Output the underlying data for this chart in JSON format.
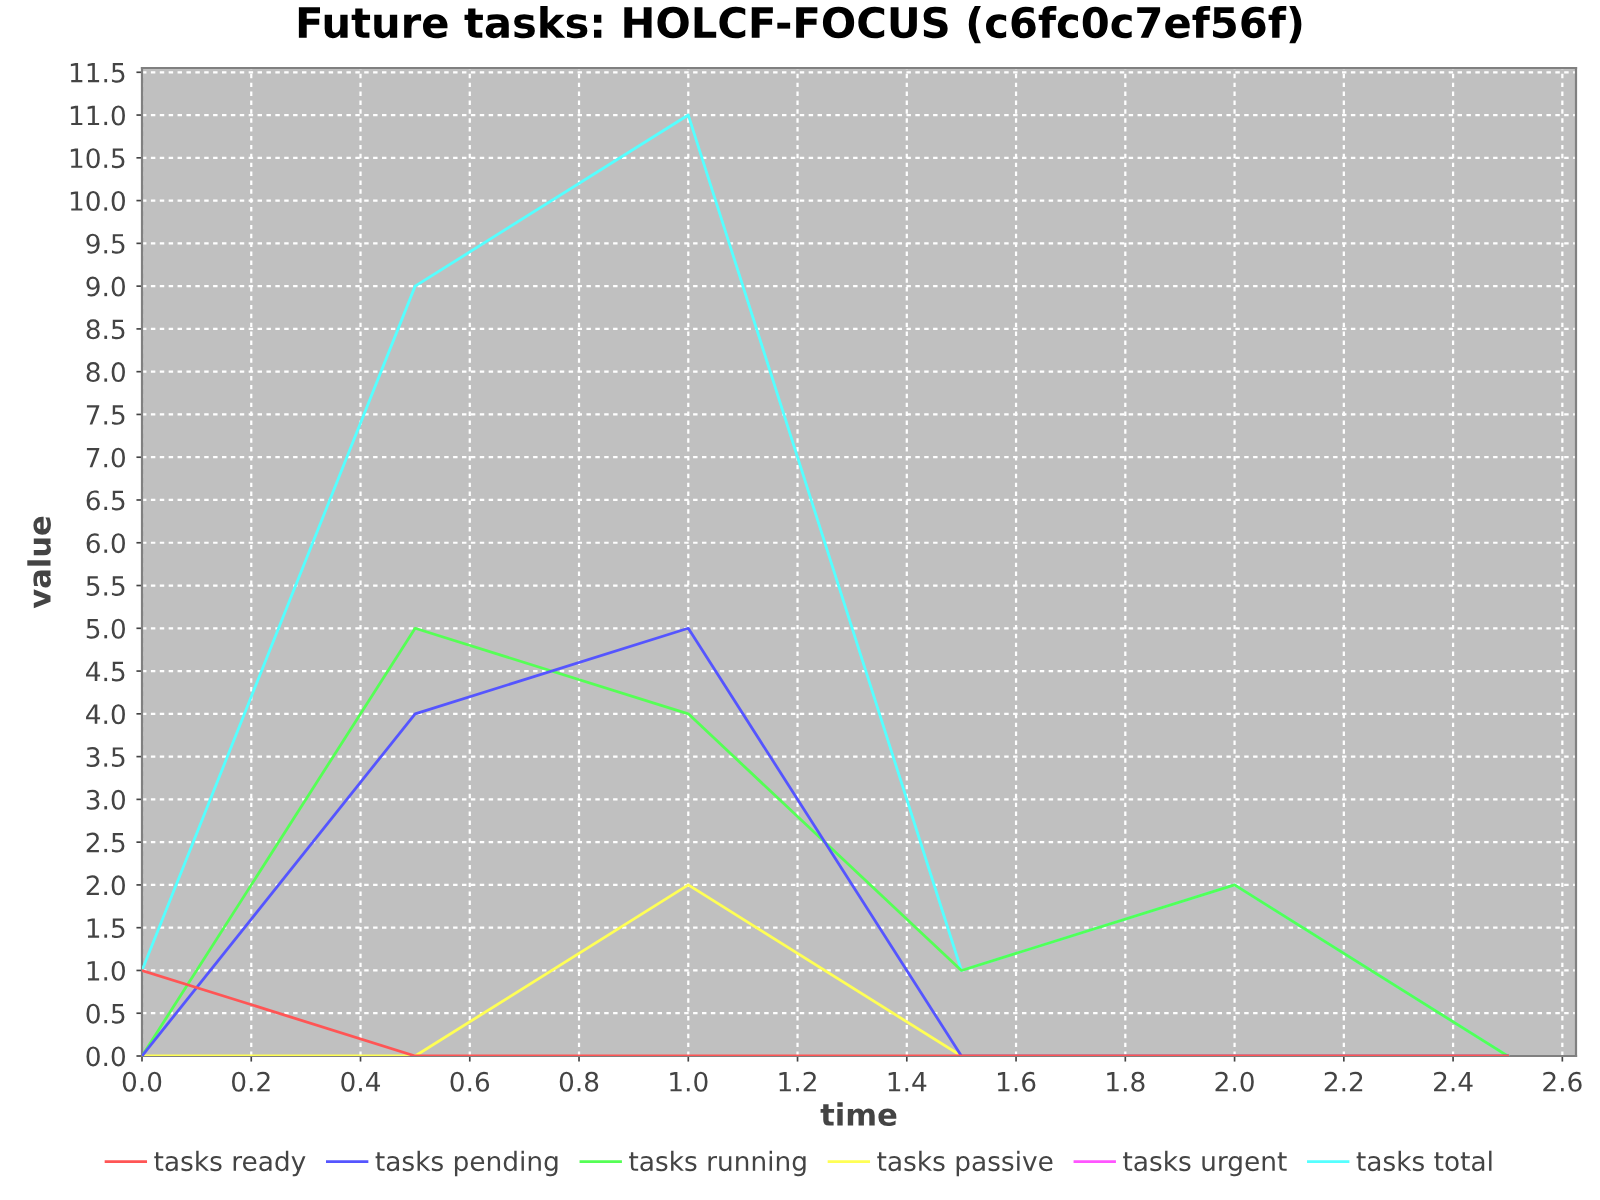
{
  "chart_data": {
    "type": "line",
    "title": "Future tasks: HOLCF-FOCUS (c6fc0c7ef56f)",
    "xlabel": "time",
    "ylabel": "value",
    "x": [
      0.0,
      0.5,
      1.0,
      1.5,
      2.0,
      2.5
    ],
    "series": [
      {
        "name": "tasks ready",
        "color": "#ff5555",
        "values": [
          1,
          0,
          0,
          0,
          0,
          0
        ]
      },
      {
        "name": "tasks pending",
        "color": "#5555ff",
        "values": [
          0,
          4,
          5,
          0,
          0,
          0
        ]
      },
      {
        "name": "tasks running",
        "color": "#55ff55",
        "values": [
          0,
          5,
          4,
          1,
          2,
          0
        ]
      },
      {
        "name": "tasks passive",
        "color": "#ffff55",
        "values": [
          0,
          0,
          2,
          0,
          0,
          0
        ]
      },
      {
        "name": "tasks urgent",
        "color": "#ff55ff",
        "values": [
          null,
          null,
          null,
          null,
          null,
          null
        ]
      },
      {
        "name": "tasks total",
        "color": "#55ffff",
        "values": [
          1,
          9,
          11,
          1,
          2,
          0
        ]
      }
    ],
    "xlim": [
      0,
      2.625
    ],
    "xticks": [
      {
        "value": 0,
        "label": "0.0"
      },
      0.2,
      0.4,
      0.6,
      0.8,
      {
        "value": 1,
        "label": "1.0"
      },
      1.2,
      1.4,
      1.6,
      1.8,
      {
        "value": 2,
        "label": "2.0"
      },
      2.2,
      2.4,
      2.6
    ],
    "ylim": [
      0,
      11.55
    ],
    "yticks": [
      {
        "value": 0,
        "label": "0.0"
      },
      0.5,
      {
        "value": 1,
        "label": "1.0"
      },
      1.5,
      {
        "value": 2,
        "label": "2.0"
      },
      2.5,
      {
        "value": 3,
        "label": "3.0"
      },
      3.5,
      {
        "value": 4,
        "label": "4.0"
      },
      4.5,
      {
        "value": 5,
        "label": "5.0"
      },
      5.5,
      {
        "value": 6,
        "label": "6.0"
      },
      6.5,
      {
        "value": 7,
        "label": "7.0"
      },
      7.5,
      {
        "value": 8,
        "label": "8.0"
      },
      8.5,
      {
        "value": 9,
        "label": "9.0"
      },
      9.5,
      {
        "value": 10,
        "label": "10.0"
      },
      10.5,
      {
        "value": 11,
        "label": "11.0"
      },
      11.5
    ],
    "grid": true,
    "legend": "bottom",
    "marker": "none",
    "line_style": "solid"
  }
}
